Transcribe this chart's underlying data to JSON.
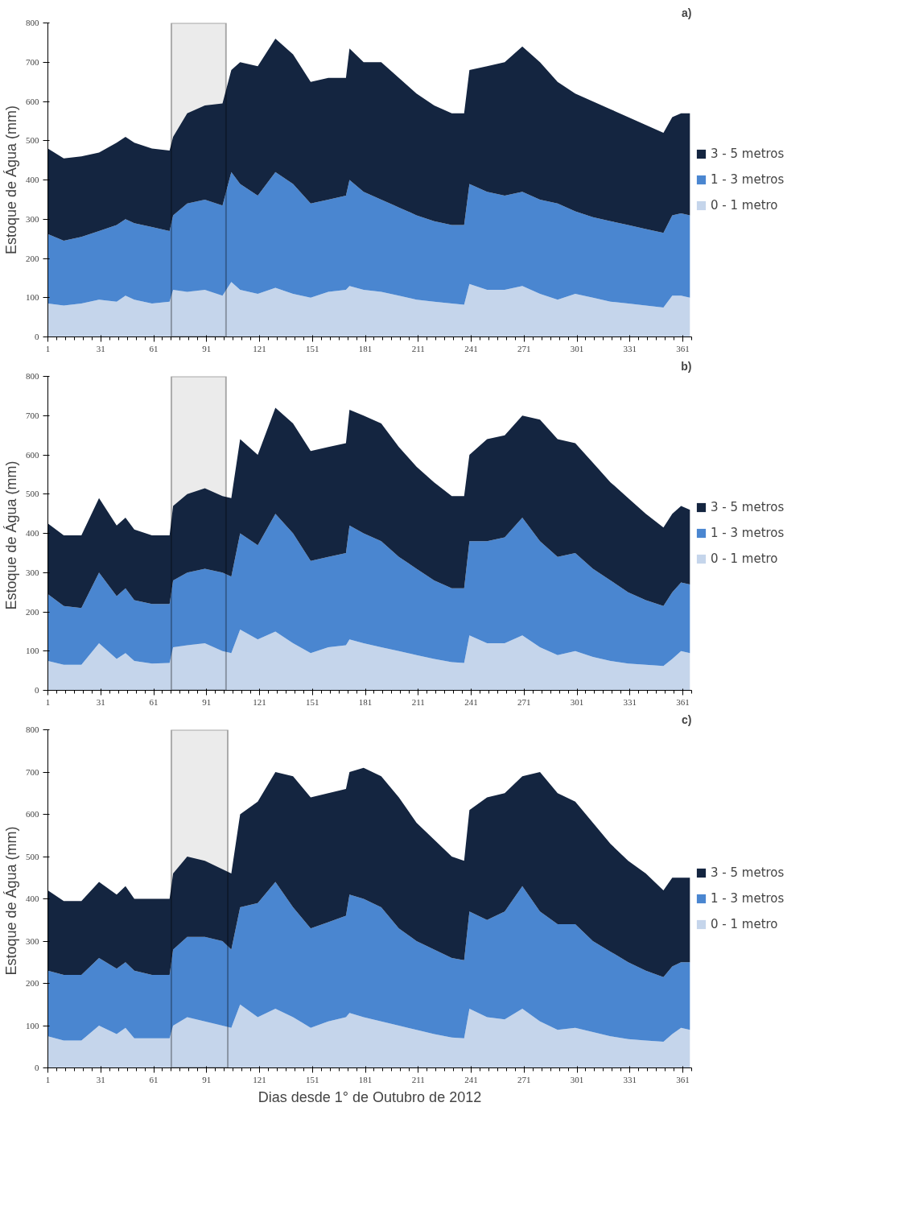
{
  "chart_data": [
    {
      "type": "area",
      "stacked": true,
      "title": "a)",
      "ylabel": "Estoque de Água (mm)",
      "legend": "right",
      "grid": false,
      "x": [
        1,
        10,
        20,
        30,
        40,
        45,
        50,
        60,
        70,
        72,
        80,
        90,
        100,
        105,
        110,
        120,
        130,
        140,
        150,
        160,
        170,
        172,
        180,
        190,
        200,
        210,
        220,
        230,
        237,
        240,
        250,
        260,
        270,
        280,
        290,
        300,
        310,
        320,
        330,
        340,
        350,
        355,
        360,
        365
      ],
      "xlim": [
        1,
        366
      ],
      "xticks": [
        1,
        31,
        61,
        91,
        121,
        151,
        181,
        211,
        241,
        271,
        301,
        331,
        361
      ],
      "ylim": [
        0,
        800
      ],
      "yticks": [
        0,
        100,
        200,
        300,
        400,
        500,
        600,
        700,
        800
      ],
      "bands": [
        {
          "axis": "x",
          "from": 71,
          "to": 102,
          "color": "#000000"
        }
      ],
      "series": [
        {
          "name": "0 - 1 metro",
          "color": "#c5d5eb",
          "values": [
            85,
            80,
            85,
            95,
            90,
            105,
            95,
            85,
            90,
            120,
            115,
            120,
            105,
            140,
            120,
            110,
            125,
            110,
            100,
            115,
            120,
            130,
            120,
            115,
            105,
            95,
            90,
            85,
            82,
            135,
            120,
            120,
            130,
            110,
            95,
            110,
            100,
            90,
            85,
            80,
            75,
            105,
            105,
            100
          ]
        },
        {
          "name": "1 - 3 metros",
          "color": "#4a86d0",
          "values": [
            177,
            165,
            170,
            175,
            195,
            195,
            195,
            195,
            180,
            190,
            225,
            230,
            230,
            280,
            270,
            250,
            295,
            280,
            240,
            235,
            240,
            270,
            250,
            235,
            225,
            215,
            205,
            200,
            203,
            255,
            250,
            240,
            240,
            240,
            245,
            210,
            205,
            205,
            200,
            195,
            190,
            205,
            210,
            210
          ]
        },
        {
          "name": "3 - 5 metros",
          "color": "#142540",
          "values": [
            218,
            210,
            205,
            200,
            210,
            210,
            205,
            200,
            205,
            200,
            230,
            240,
            260,
            260,
            310,
            330,
            340,
            330,
            310,
            310,
            300,
            335,
            330,
            350,
            330,
            310,
            295,
            285,
            285,
            290,
            320,
            340,
            370,
            350,
            310,
            300,
            295,
            285,
            275,
            265,
            255,
            250,
            255,
            260
          ]
        }
      ]
    },
    {
      "type": "area",
      "stacked": true,
      "title": "b)",
      "ylabel": "Estoque de Água  (mm)",
      "legend": "right",
      "grid": false,
      "x": [
        1,
        10,
        20,
        30,
        40,
        45,
        50,
        60,
        70,
        72,
        80,
        90,
        100,
        105,
        110,
        120,
        130,
        140,
        150,
        160,
        170,
        172,
        180,
        190,
        200,
        210,
        220,
        230,
        237,
        240,
        250,
        260,
        270,
        280,
        290,
        300,
        310,
        320,
        330,
        340,
        350,
        355,
        360,
        365
      ],
      "xlim": [
        1,
        366
      ],
      "xticks": [
        1,
        31,
        61,
        91,
        121,
        151,
        181,
        211,
        241,
        271,
        301,
        331,
        361
      ],
      "ylim": [
        0,
        800
      ],
      "yticks": [
        0,
        100,
        200,
        300,
        400,
        500,
        600,
        700,
        800
      ],
      "bands": [
        {
          "axis": "x",
          "from": 71,
          "to": 102,
          "color": "#000000"
        }
      ],
      "series": [
        {
          "name": "0 - 1 metro",
          "color": "#c5d5eb",
          "values": [
            75,
            65,
            65,
            120,
            80,
            95,
            75,
            68,
            70,
            110,
            115,
            120,
            100,
            95,
            155,
            130,
            150,
            120,
            95,
            110,
            115,
            130,
            120,
            110,
            100,
            90,
            80,
            72,
            70,
            140,
            120,
            120,
            140,
            110,
            90,
            100,
            85,
            75,
            68,
            65,
            62,
            80,
            100,
            95
          ]
        },
        {
          "name": "1 - 3 metros",
          "color": "#4a86d0",
          "values": [
            170,
            150,
            145,
            180,
            160,
            165,
            155,
            152,
            150,
            170,
            185,
            190,
            200,
            195,
            245,
            240,
            300,
            280,
            235,
            230,
            235,
            290,
            280,
            270,
            240,
            220,
            200,
            188,
            190,
            240,
            260,
            270,
            300,
            270,
            250,
            250,
            225,
            205,
            182,
            165,
            153,
            170,
            175,
            175
          ]
        },
        {
          "name": "3 - 5 metros",
          "color": "#142540",
          "values": [
            180,
            180,
            185,
            190,
            180,
            180,
            180,
            175,
            175,
            190,
            200,
            205,
            195,
            200,
            240,
            230,
            270,
            280,
            280,
            280,
            280,
            295,
            300,
            300,
            280,
            260,
            250,
            235,
            235,
            220,
            260,
            260,
            260,
            310,
            300,
            280,
            270,
            250,
            240,
            220,
            200,
            200,
            195,
            190
          ]
        }
      ]
    },
    {
      "type": "area",
      "stacked": true,
      "title": "c)",
      "ylabel": "Estoque de Água  (mm)",
      "xlabel": "Dias desde 1° de Outubro de 2012",
      "legend": "right",
      "grid": false,
      "x": [
        1,
        10,
        20,
        30,
        40,
        45,
        50,
        60,
        70,
        72,
        80,
        90,
        100,
        105,
        110,
        120,
        130,
        140,
        150,
        160,
        170,
        172,
        180,
        190,
        200,
        210,
        220,
        230,
        237,
        240,
        250,
        260,
        270,
        280,
        290,
        300,
        310,
        320,
        330,
        340,
        350,
        355,
        360,
        365
      ],
      "xlim": [
        1,
        366
      ],
      "xticks": [
        1,
        31,
        61,
        91,
        121,
        151,
        181,
        211,
        241,
        271,
        301,
        331,
        361
      ],
      "ylim": [
        0,
        800
      ],
      "yticks": [
        0,
        100,
        200,
        300,
        400,
        500,
        600,
        700,
        800
      ],
      "bands": [
        {
          "axis": "x",
          "from": 71,
          "to": 103,
          "color": "#000000"
        }
      ],
      "series": [
        {
          "name": "0 - 1 metro",
          "color": "#c5d5eb",
          "values": [
            75,
            65,
            65,
            100,
            80,
            95,
            70,
            70,
            70,
            100,
            120,
            110,
            100,
            95,
            150,
            120,
            140,
            120,
            95,
            110,
            120,
            130,
            120,
            110,
            100,
            90,
            80,
            72,
            70,
            140,
            120,
            115,
            140,
            110,
            90,
            95,
            85,
            75,
            68,
            65,
            62,
            80,
            95,
            90
          ]
        },
        {
          "name": "1 - 3 metros",
          "color": "#4a86d0",
          "values": [
            155,
            155,
            155,
            160,
            155,
            155,
            160,
            150,
            150,
            180,
            190,
            200,
            200,
            185,
            230,
            270,
            300,
            260,
            235,
            235,
            240,
            280,
            280,
            270,
            230,
            210,
            200,
            188,
            185,
            230,
            230,
            255,
            290,
            260,
            250,
            245,
            215,
            200,
            182,
            165,
            153,
            160,
            155,
            160
          ]
        },
        {
          "name": "3 - 5 metros",
          "color": "#142540",
          "values": [
            190,
            175,
            175,
            180,
            175,
            180,
            170,
            180,
            180,
            180,
            190,
            180,
            170,
            180,
            220,
            240,
            260,
            310,
            310,
            305,
            300,
            290,
            310,
            310,
            310,
            280,
            260,
            240,
            235,
            240,
            290,
            280,
            260,
            330,
            310,
            290,
            280,
            255,
            240,
            230,
            205,
            210,
            200,
            200
          ]
        }
      ]
    }
  ]
}
